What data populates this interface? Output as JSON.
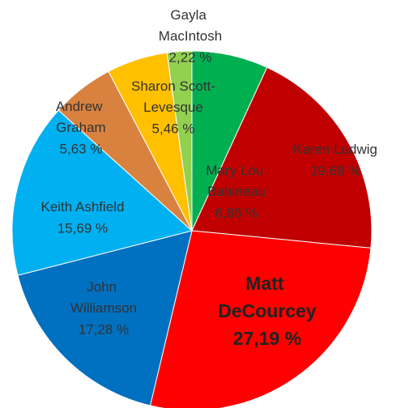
{
  "chart_data": {
    "type": "pie",
    "categories": [
      "Mary Lou Babineau",
      "Karen Ludwig",
      "Matt DeCourcey",
      "John Williamson",
      "Keith Ashfield",
      "Andrew Graham",
      "Sharon Scott-Levesque",
      "Gayla MacIntosh"
    ],
    "values": [
      6.86,
      19.68,
      27.19,
      17.28,
      15.69,
      5.63,
      5.46,
      2.22
    ],
    "value_labels": [
      "6,86 %",
      "19,68 %",
      "27,19 %",
      "17,28 %",
      "15,69 %",
      "5,63 %",
      "5,46 %",
      "2,22 %"
    ],
    "colors": [
      "#00b050",
      "#c00000",
      "#ff0000",
      "#0070c0",
      "#00b0f0",
      "#d9823f",
      "#ffc000",
      "#92d050"
    ]
  }
}
